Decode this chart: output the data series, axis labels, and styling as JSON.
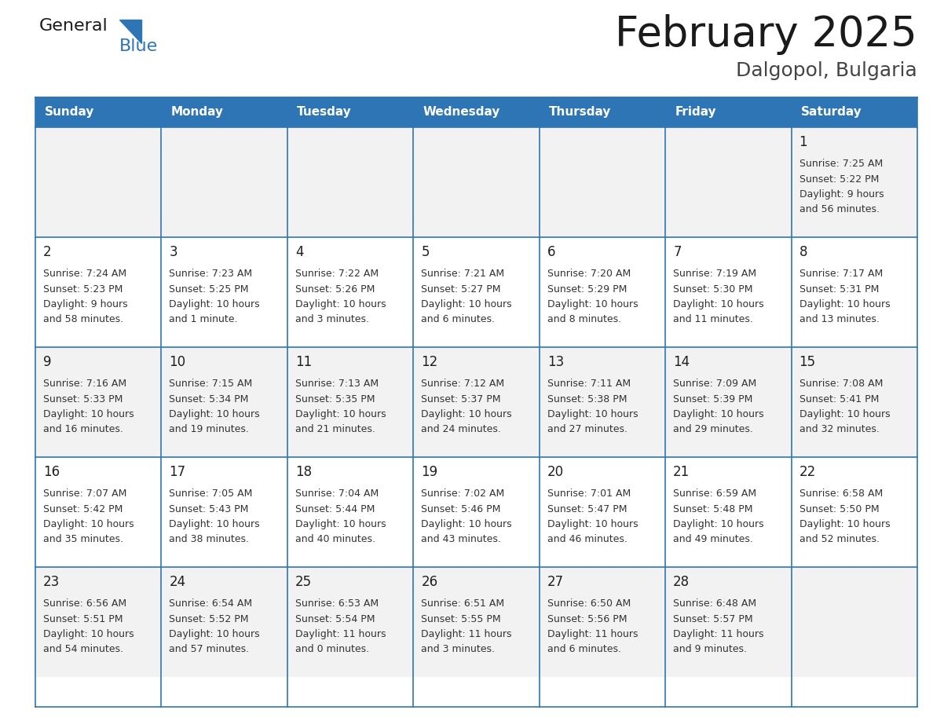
{
  "title": "February 2025",
  "subtitle": "Dalgopol, Bulgaria",
  "days_of_week": [
    "Sunday",
    "Monday",
    "Tuesday",
    "Wednesday",
    "Thursday",
    "Friday",
    "Saturday"
  ],
  "header_bg": "#2E75B6",
  "header_text_color": "#FFFFFF",
  "cell_bg": "#FFFFFF",
  "cell_alt_bg": "#F2F2F2",
  "cell_border_color": "#2E75B6",
  "day_number_color": "#1F1F1F",
  "info_text_color": "#333333",
  "title_color": "#1a1a1a",
  "subtitle_color": "#444444",
  "logo_general_color": "#1a1a1a",
  "logo_blue_color": "#2E75B6",
  "calendar_data": [
    [
      null,
      null,
      null,
      null,
      null,
      null,
      {
        "day": 1,
        "sunrise": "7:25 AM",
        "sunset": "5:22 PM",
        "daylight_line1": "Daylight: 9 hours",
        "daylight_line2": "and 56 minutes."
      }
    ],
    [
      {
        "day": 2,
        "sunrise": "7:24 AM",
        "sunset": "5:23 PM",
        "daylight_line1": "Daylight: 9 hours",
        "daylight_line2": "and 58 minutes."
      },
      {
        "day": 3,
        "sunrise": "7:23 AM",
        "sunset": "5:25 PM",
        "daylight_line1": "Daylight: 10 hours",
        "daylight_line2": "and 1 minute."
      },
      {
        "day": 4,
        "sunrise": "7:22 AM",
        "sunset": "5:26 PM",
        "daylight_line1": "Daylight: 10 hours",
        "daylight_line2": "and 3 minutes."
      },
      {
        "day": 5,
        "sunrise": "7:21 AM",
        "sunset": "5:27 PM",
        "daylight_line1": "Daylight: 10 hours",
        "daylight_line2": "and 6 minutes."
      },
      {
        "day": 6,
        "sunrise": "7:20 AM",
        "sunset": "5:29 PM",
        "daylight_line1": "Daylight: 10 hours",
        "daylight_line2": "and 8 minutes."
      },
      {
        "day": 7,
        "sunrise": "7:19 AM",
        "sunset": "5:30 PM",
        "daylight_line1": "Daylight: 10 hours",
        "daylight_line2": "and 11 minutes."
      },
      {
        "day": 8,
        "sunrise": "7:17 AM",
        "sunset": "5:31 PM",
        "daylight_line1": "Daylight: 10 hours",
        "daylight_line2": "and 13 minutes."
      }
    ],
    [
      {
        "day": 9,
        "sunrise": "7:16 AM",
        "sunset": "5:33 PM",
        "daylight_line1": "Daylight: 10 hours",
        "daylight_line2": "and 16 minutes."
      },
      {
        "day": 10,
        "sunrise": "7:15 AM",
        "sunset": "5:34 PM",
        "daylight_line1": "Daylight: 10 hours",
        "daylight_line2": "and 19 minutes."
      },
      {
        "day": 11,
        "sunrise": "7:13 AM",
        "sunset": "5:35 PM",
        "daylight_line1": "Daylight: 10 hours",
        "daylight_line2": "and 21 minutes."
      },
      {
        "day": 12,
        "sunrise": "7:12 AM",
        "sunset": "5:37 PM",
        "daylight_line1": "Daylight: 10 hours",
        "daylight_line2": "and 24 minutes."
      },
      {
        "day": 13,
        "sunrise": "7:11 AM",
        "sunset": "5:38 PM",
        "daylight_line1": "Daylight: 10 hours",
        "daylight_line2": "and 27 minutes."
      },
      {
        "day": 14,
        "sunrise": "7:09 AM",
        "sunset": "5:39 PM",
        "daylight_line1": "Daylight: 10 hours",
        "daylight_line2": "and 29 minutes."
      },
      {
        "day": 15,
        "sunrise": "7:08 AM",
        "sunset": "5:41 PM",
        "daylight_line1": "Daylight: 10 hours",
        "daylight_line2": "and 32 minutes."
      }
    ],
    [
      {
        "day": 16,
        "sunrise": "7:07 AM",
        "sunset": "5:42 PM",
        "daylight_line1": "Daylight: 10 hours",
        "daylight_line2": "and 35 minutes."
      },
      {
        "day": 17,
        "sunrise": "7:05 AM",
        "sunset": "5:43 PM",
        "daylight_line1": "Daylight: 10 hours",
        "daylight_line2": "and 38 minutes."
      },
      {
        "day": 18,
        "sunrise": "7:04 AM",
        "sunset": "5:44 PM",
        "daylight_line1": "Daylight: 10 hours",
        "daylight_line2": "and 40 minutes."
      },
      {
        "day": 19,
        "sunrise": "7:02 AM",
        "sunset": "5:46 PM",
        "daylight_line1": "Daylight: 10 hours",
        "daylight_line2": "and 43 minutes."
      },
      {
        "day": 20,
        "sunrise": "7:01 AM",
        "sunset": "5:47 PM",
        "daylight_line1": "Daylight: 10 hours",
        "daylight_line2": "and 46 minutes."
      },
      {
        "day": 21,
        "sunrise": "6:59 AM",
        "sunset": "5:48 PM",
        "daylight_line1": "Daylight: 10 hours",
        "daylight_line2": "and 49 minutes."
      },
      {
        "day": 22,
        "sunrise": "6:58 AM",
        "sunset": "5:50 PM",
        "daylight_line1": "Daylight: 10 hours",
        "daylight_line2": "and 52 minutes."
      }
    ],
    [
      {
        "day": 23,
        "sunrise": "6:56 AM",
        "sunset": "5:51 PM",
        "daylight_line1": "Daylight: 10 hours",
        "daylight_line2": "and 54 minutes."
      },
      {
        "day": 24,
        "sunrise": "6:54 AM",
        "sunset": "5:52 PM",
        "daylight_line1": "Daylight: 10 hours",
        "daylight_line2": "and 57 minutes."
      },
      {
        "day": 25,
        "sunrise": "6:53 AM",
        "sunset": "5:54 PM",
        "daylight_line1": "Daylight: 11 hours",
        "daylight_line2": "and 0 minutes."
      },
      {
        "day": 26,
        "sunrise": "6:51 AM",
        "sunset": "5:55 PM",
        "daylight_line1": "Daylight: 11 hours",
        "daylight_line2": "and 3 minutes."
      },
      {
        "day": 27,
        "sunrise": "6:50 AM",
        "sunset": "5:56 PM",
        "daylight_line1": "Daylight: 11 hours",
        "daylight_line2": "and 6 minutes."
      },
      {
        "day": 28,
        "sunrise": "6:48 AM",
        "sunset": "5:57 PM",
        "daylight_line1": "Daylight: 11 hours",
        "daylight_line2": "and 9 minutes."
      },
      null
    ]
  ],
  "figsize": [
    11.88,
    9.18
  ],
  "dpi": 100
}
